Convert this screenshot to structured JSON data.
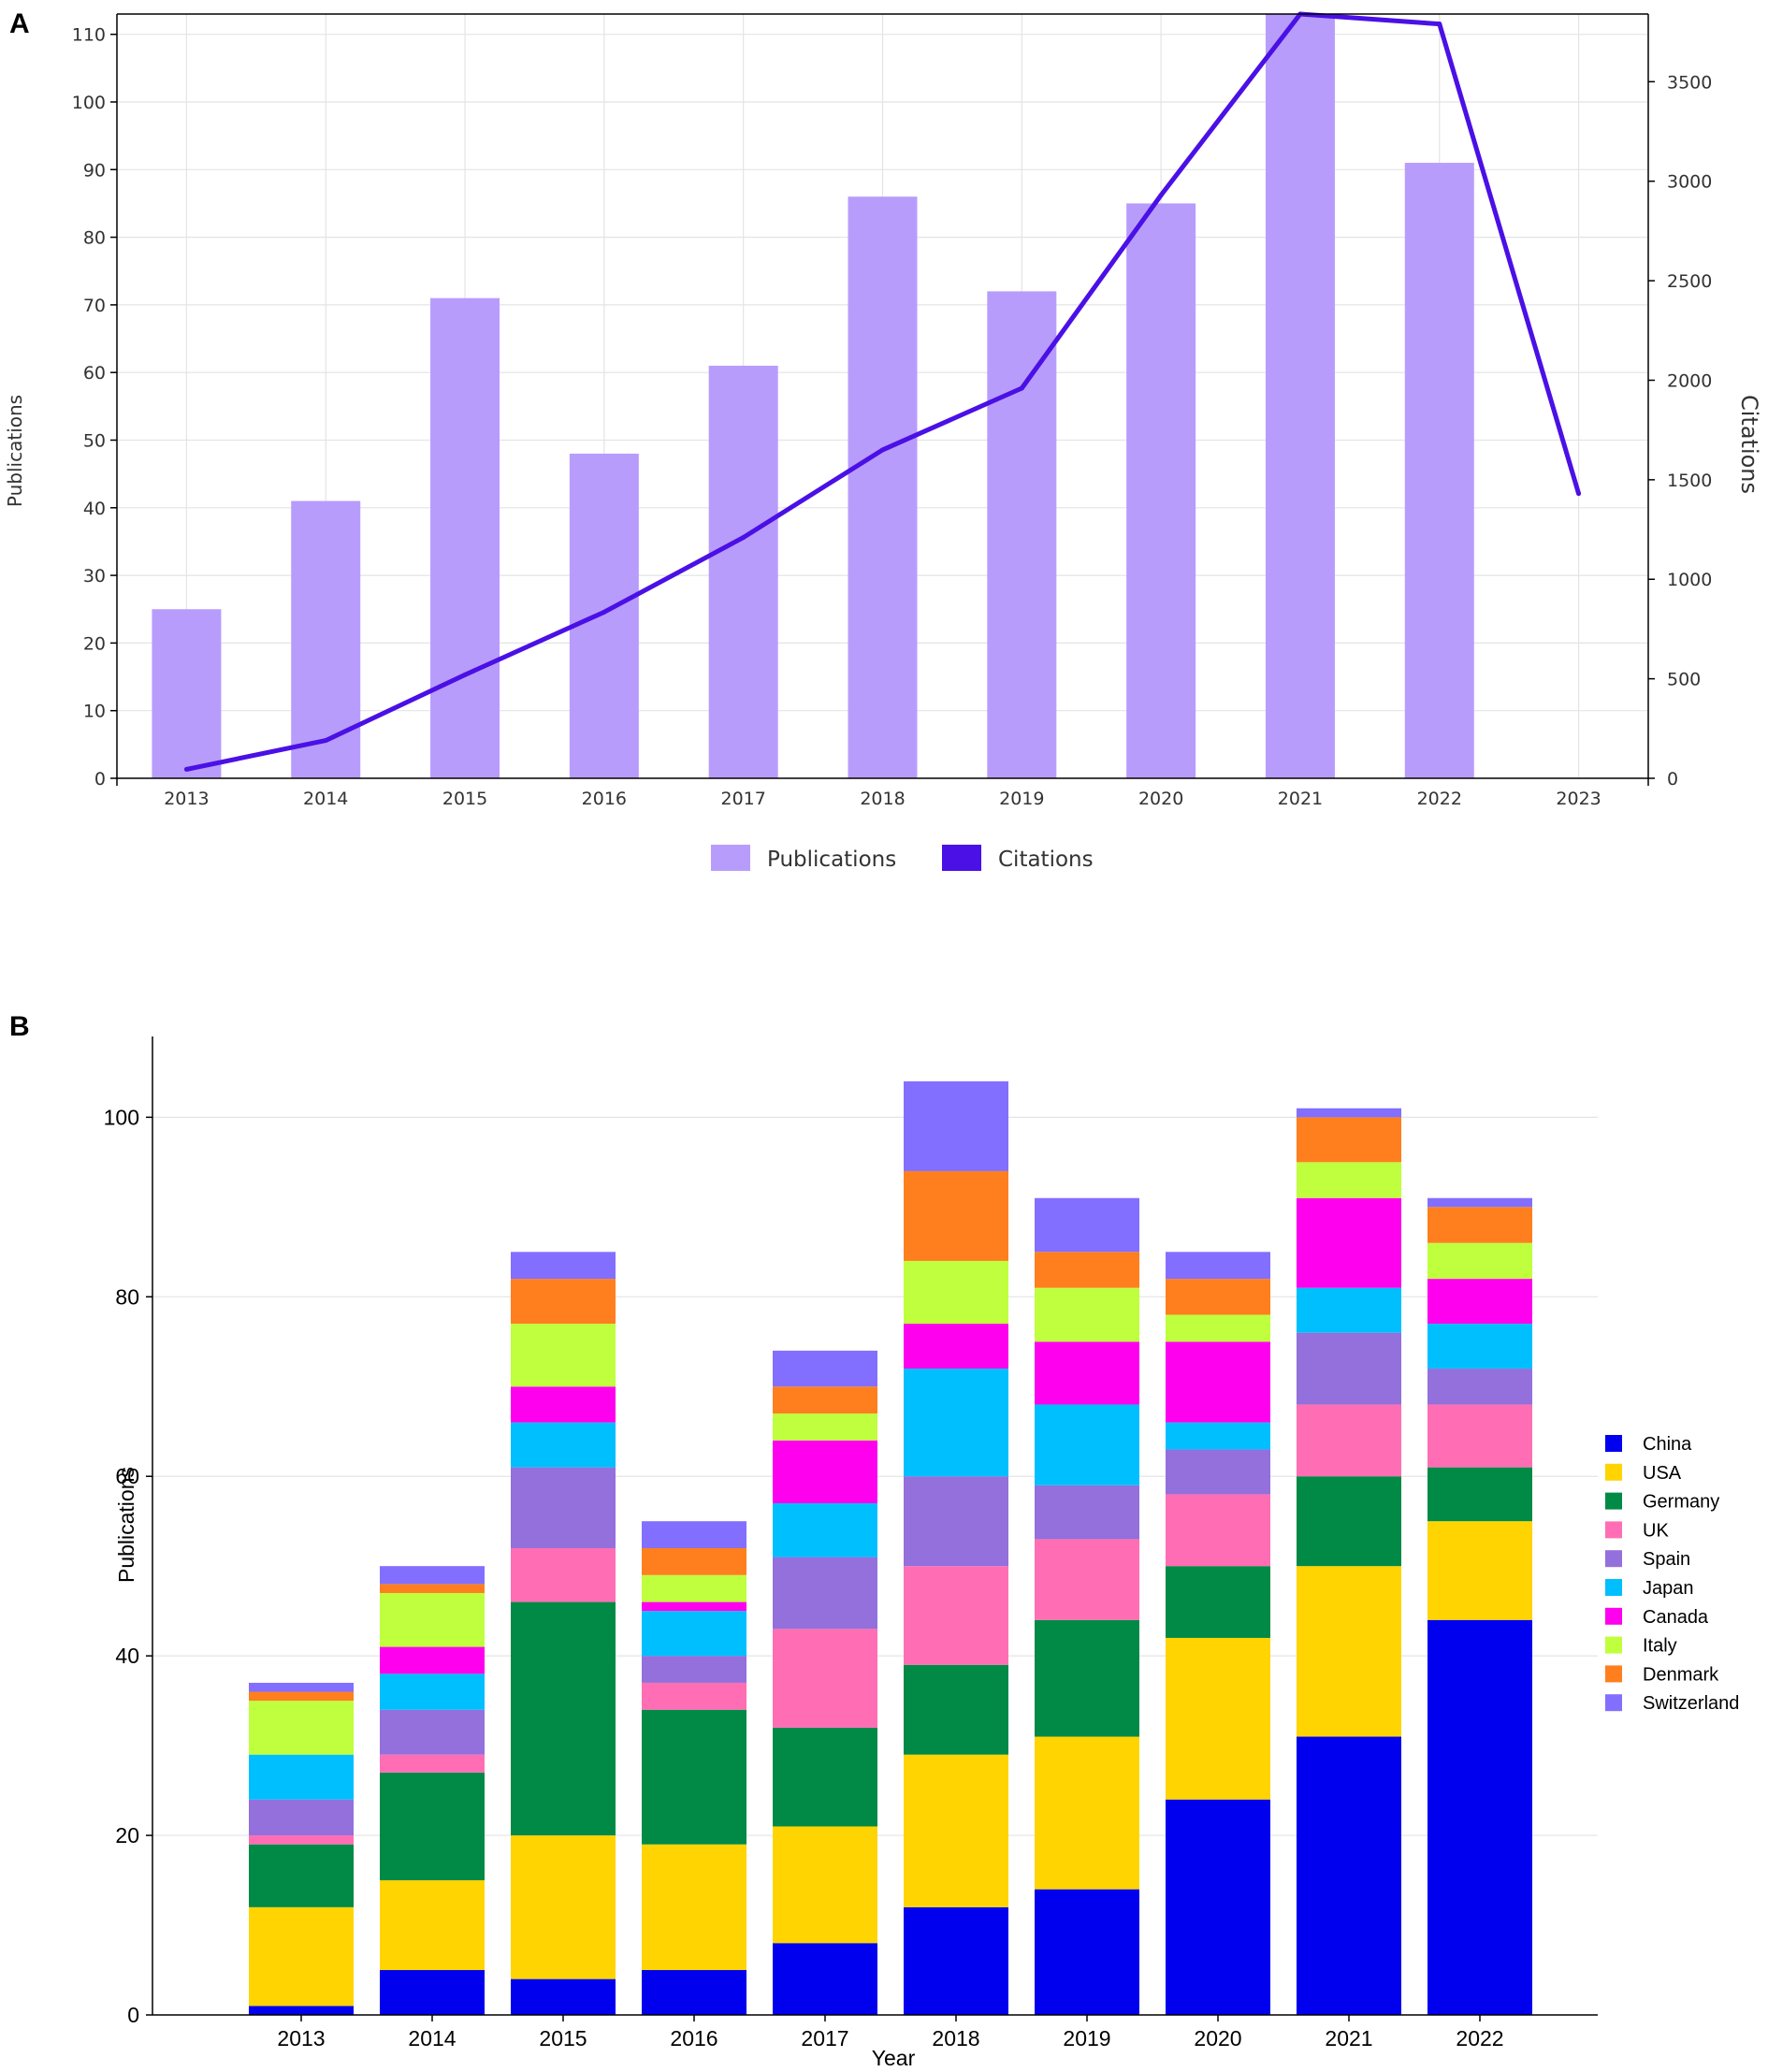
{
  "chart_data": [
    {
      "panel": "A",
      "type": "bar",
      "title": "",
      "xlabel": "",
      "ylabel": "Publications",
      "y2label": "Citations",
      "categories": [
        "2013",
        "2014",
        "2015",
        "2016",
        "2017",
        "2018",
        "2019",
        "2020",
        "2021",
        "2022",
        "2023"
      ],
      "ylim": [
        0,
        113
      ],
      "y2lim": [
        0,
        3840
      ],
      "yticks": [
        0,
        10,
        20,
        30,
        40,
        50,
        60,
        70,
        80,
        90,
        100,
        110
      ],
      "y2ticks": [
        0,
        500,
        1000,
        1500,
        2000,
        2500,
        3000,
        3500
      ],
      "grid": true,
      "legend": "bottom",
      "series": [
        {
          "name": "Publications",
          "type": "bar",
          "axis": "left",
          "color": "#b89cfc",
          "values": [
            25,
            41,
            71,
            48,
            61,
            86,
            72,
            85,
            113,
            91,
            0
          ]
        },
        {
          "name": "Citations",
          "type": "line",
          "axis": "right",
          "color": "#4a10e6",
          "values": [
            45,
            190,
            520,
            835,
            1210,
            1650,
            1960,
            2930,
            3840,
            3790,
            1430
          ]
        }
      ]
    },
    {
      "panel": "B",
      "type": "bar",
      "stacked": true,
      "title": "",
      "xlabel": "Year",
      "ylabel": "Publications",
      "categories": [
        "2013",
        "2014",
        "2015",
        "2016",
        "2017",
        "2018",
        "2019",
        "2020",
        "2021",
        "2022"
      ],
      "ylim": [
        0,
        109
      ],
      "yticks": [
        0,
        20,
        40,
        60,
        80,
        100
      ],
      "grid": true,
      "legend": "right",
      "series": [
        {
          "name": "China",
          "color": "#0000ee",
          "values": [
            1,
            5,
            4,
            5,
            8,
            12,
            14,
            24,
            31,
            44
          ]
        },
        {
          "name": "USA",
          "color": "#ffd400",
          "values": [
            11,
            10,
            16,
            14,
            13,
            17,
            17,
            18,
            19,
            11
          ]
        },
        {
          "name": "Germany",
          "color": "#008a46",
          "values": [
            7,
            12,
            26,
            15,
            11,
            10,
            13,
            8,
            10,
            6
          ]
        },
        {
          "name": "UK",
          "color": "#ff6eb4",
          "values": [
            1,
            2,
            6,
            3,
            11,
            11,
            9,
            8,
            8,
            7
          ]
        },
        {
          "name": "Spain",
          "color": "#9370db",
          "values": [
            4,
            5,
            9,
            3,
            8,
            10,
            6,
            5,
            8,
            4
          ]
        },
        {
          "name": "Japan",
          "color": "#00bfff",
          "values": [
            5,
            4,
            5,
            5,
            6,
            12,
            9,
            3,
            5,
            5
          ]
        },
        {
          "name": "Canada",
          "color": "#ff00ee",
          "values": [
            0,
            3,
            4,
            1,
            7,
            5,
            7,
            9,
            10,
            5
          ]
        },
        {
          "name": "Italy",
          "color": "#bfff3e",
          "values": [
            6,
            6,
            7,
            3,
            3,
            7,
            6,
            3,
            4,
            4
          ]
        },
        {
          "name": "Denmark",
          "color": "#ff7f1e",
          "values": [
            1,
            1,
            5,
            3,
            3,
            10,
            4,
            4,
            5,
            4
          ]
        },
        {
          "name": "Switzerland",
          "color": "#836fff",
          "values": [
            1,
            2,
            3,
            3,
            4,
            10,
            6,
            3,
            1,
            1
          ]
        }
      ]
    }
  ],
  "colors": {
    "grid": "#e4e4e4",
    "axis": "#000000"
  }
}
